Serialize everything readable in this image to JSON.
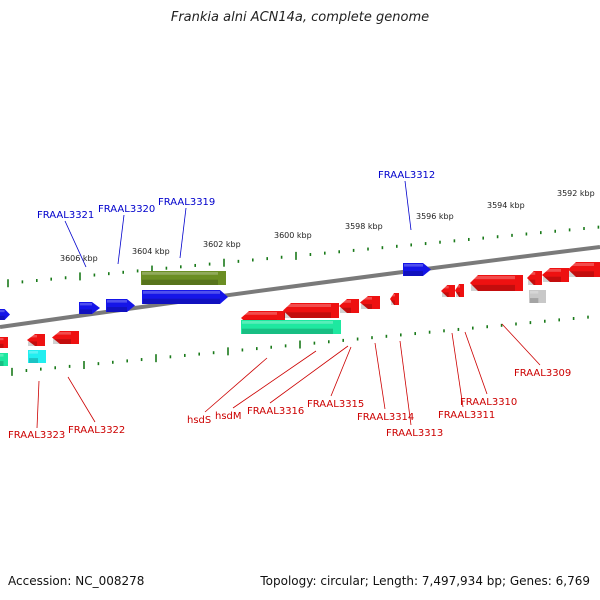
{
  "title": "Frankia alni ACN14a, complete genome",
  "footer": {
    "accession": "Accession: NC_008278",
    "summary": "Topology: circular; Length: 7,497,934 bp; Genes: 6,769"
  },
  "colors": {
    "forward_label": "#0000cc",
    "reverse_label": "#cc0000",
    "backbone": "#7a7a7a",
    "tick": "#1a7a1a",
    "gene_red": "#ee1111",
    "gene_blue": "#1515e8",
    "gene_olive": "#6b8e23",
    "gene_teal": "#1ee8a0",
    "gene_cyan": "#22eef0",
    "gene_grey": "#c8c8c8"
  },
  "scale_labels": [
    "3606 kbp",
    "3604 kbp",
    "3602 kbp",
    "3600 kbp",
    "3598 kbp",
    "3596 kbp",
    "3594 kbp",
    "3592 kbp"
  ],
  "forward_genes": [
    "FRAAL3321",
    "FRAAL3320",
    "FRAAL3319",
    "FRAAL3312"
  ],
  "reverse_genes": [
    "FRAAL3323",
    "FRAAL3322",
    "hsdS",
    "hsdM",
    "FRAAL3316",
    "FRAAL3315",
    "FRAAL3314",
    "FRAAL3313",
    "FRAAL3311",
    "FRAAL3310",
    "FRAAL3309"
  ]
}
